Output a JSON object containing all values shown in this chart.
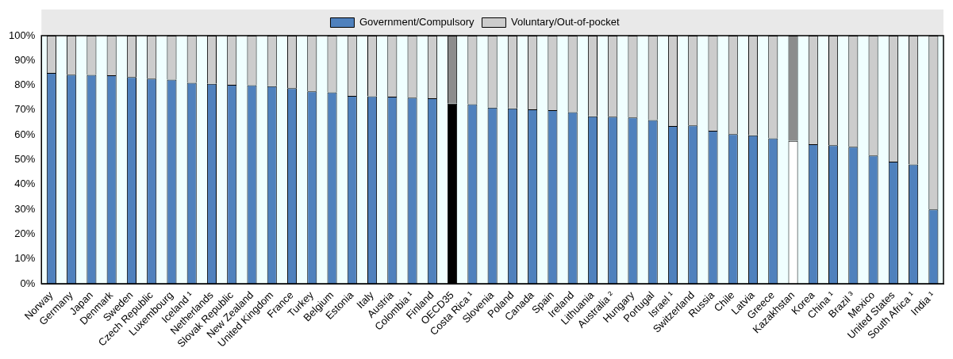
{
  "chart_data": {
    "type": "bar",
    "stacked": true,
    "legend": "top",
    "grid": false,
    "categories": [
      "Norway",
      "Germany",
      "Japan",
      "Denmark",
      "Sweden",
      "Czech Republic",
      "Luxembourg",
      "Iceland ¹",
      "Netherlands",
      "Slovak Republic",
      "New Zealand",
      "United Kingdom",
      "France",
      "Turkey",
      "Belgium",
      "Estonia",
      "Italy",
      "Austria",
      "Colombia ¹",
      "Finland",
      "OECD35",
      "Costa Rica ¹",
      "Slovenia",
      "Poland",
      "Canada",
      "Spain",
      "Ireland",
      "Lithuania",
      "Australia ²",
      "Hungary",
      "Portugal",
      "Israel ¹",
      "Switzerland",
      "Russia",
      "Chile",
      "Latvia",
      "Greece",
      "Kazakhstan",
      "Korea",
      "China ¹",
      "Brazil ³",
      "Mexico",
      "United States",
      "South Africa ¹",
      "India ¹"
    ],
    "series": [
      {
        "name": "Government/Compulsory",
        "color": "#4f81bd",
        "colors": [
          "#4f81bd",
          "#4f81bd",
          "#4f81bd",
          "#4f81bd",
          "#4f81bd",
          "#4f81bd",
          "#4f81bd",
          "#4f81bd",
          "#4f81bd",
          "#4f81bd",
          "#4f81bd",
          "#4f81bd",
          "#4f81bd",
          "#4f81bd",
          "#4f81bd",
          "#4f81bd",
          "#4f81bd",
          "#4f81bd",
          "#4f81bd",
          "#4f81bd",
          "#000000",
          "#4f81bd",
          "#4f81bd",
          "#4f81bd",
          "#4f81bd",
          "#4f81bd",
          "#4f81bd",
          "#4f81bd",
          "#4f81bd",
          "#4f81bd",
          "#4f81bd",
          "#4f81bd",
          "#4f81bd",
          "#4f81bd",
          "#4f81bd",
          "#4f81bd",
          "#4f81bd",
          "#ffffff",
          "#4f81bd",
          "#4f81bd",
          "#4f81bd",
          "#4f81bd",
          "#4f81bd",
          "#4f81bd",
          "#4f81bd"
        ],
        "values": [
          85,
          84.3,
          84.2,
          84,
          83.3,
          82.7,
          82.3,
          81,
          80.6,
          80.2,
          80,
          79.6,
          78.8,
          77.6,
          77.2,
          75.7,
          75.6,
          75.4,
          75,
          74.8,
          72.6,
          72.4,
          71,
          70.7,
          70.3,
          70,
          69.2,
          67.5,
          67.3,
          67,
          66,
          63.6,
          63.8,
          61.7,
          60.3,
          59.8,
          58.6,
          57.6,
          56.2,
          55.8,
          55.2,
          51.7,
          49.2,
          48.1,
          30
        ]
      },
      {
        "name": "Voluntary/Out-of-pocket",
        "color": "#cccccc",
        "colors": [
          "#cccccc",
          "#cccccc",
          "#cccccc",
          "#cccccc",
          "#cccccc",
          "#cccccc",
          "#cccccc",
          "#cccccc",
          "#cccccc",
          "#cccccc",
          "#cccccc",
          "#cccccc",
          "#cccccc",
          "#cccccc",
          "#cccccc",
          "#cccccc",
          "#cccccc",
          "#cccccc",
          "#cccccc",
          "#cccccc",
          "#8c8c8c",
          "#cccccc",
          "#cccccc",
          "#cccccc",
          "#cccccc",
          "#cccccc",
          "#cccccc",
          "#cccccc",
          "#cccccc",
          "#cccccc",
          "#cccccc",
          "#cccccc",
          "#cccccc",
          "#cccccc",
          "#cccccc",
          "#cccccc",
          "#cccccc",
          "#8c8c8c",
          "#cccccc",
          "#cccccc",
          "#cccccc",
          "#cccccc",
          "#cccccc",
          "#cccccc",
          "#cccccc"
        ],
        "values": [
          15,
          15.7,
          15.8,
          16,
          16.7,
          17.3,
          17.7,
          19,
          19.4,
          19.8,
          20,
          20.4,
          21.2,
          22.4,
          22.8,
          24.3,
          24.4,
          24.6,
          25,
          25.2,
          27.4,
          27.6,
          29,
          29.3,
          29.7,
          30,
          30.8,
          32.5,
          32.7,
          33,
          34,
          36.4,
          36.2,
          38.3,
          39.7,
          40.2,
          41.4,
          42.4,
          43.8,
          44.2,
          44.8,
          48.3,
          50.8,
          51.9,
          70
        ]
      }
    ],
    "ylim": [
      0,
      100
    ],
    "yticks": [
      {
        "value": 0,
        "label": "0%"
      },
      {
        "value": 10,
        "label": "10%"
      },
      {
        "value": 20,
        "label": "20%"
      },
      {
        "value": 30,
        "label": "30%"
      },
      {
        "value": 40,
        "label": "40%"
      },
      {
        "value": 50,
        "label": "50%"
      },
      {
        "value": 60,
        "label": "60%"
      },
      {
        "value": 70,
        "label": "70%"
      },
      {
        "value": 80,
        "label": "80%"
      },
      {
        "value": 90,
        "label": "90%"
      },
      {
        "value": 100,
        "label": "100%"
      }
    ]
  }
}
